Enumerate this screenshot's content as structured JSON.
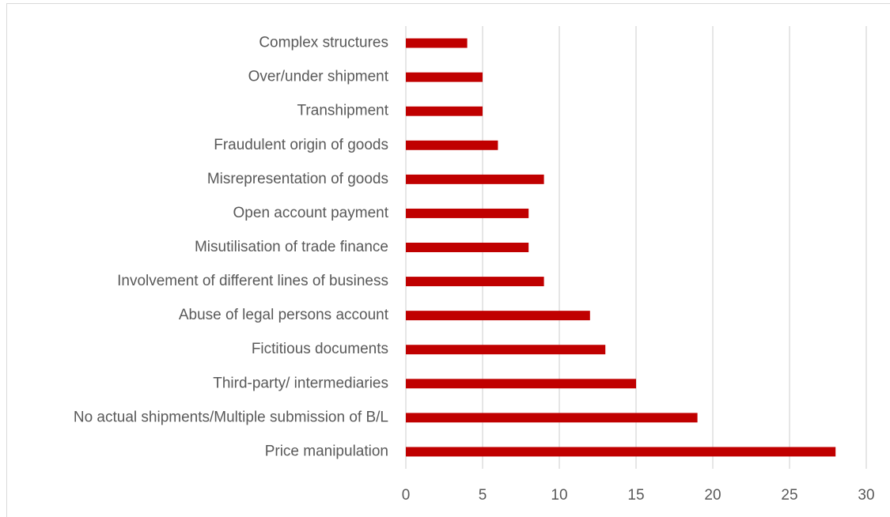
{
  "chart_data": {
    "type": "bar",
    "orientation": "horizontal",
    "categories": [
      "Complex structures",
      "Over/under shipment",
      "Transhipment",
      "Fraudulent origin of goods",
      "Misrepresentation of goods",
      "Open account payment",
      "Misutilisation of trade finance ",
      "Involvement of different lines of business",
      "Abuse of legal persons account",
      "Fictitious documents",
      "Third-party/ intermediaries",
      "No actual shipments/Multiple submission of B/L",
      "Price manipulation"
    ],
    "values": [
      4,
      5,
      5,
      6,
      9,
      8,
      8,
      9,
      12,
      13,
      15,
      19,
      28
    ],
    "color": "#c00000",
    "xlim": [
      0,
      30
    ],
    "xticks": [
      0,
      5,
      10,
      15,
      20,
      25,
      30
    ],
    "grid": true
  }
}
